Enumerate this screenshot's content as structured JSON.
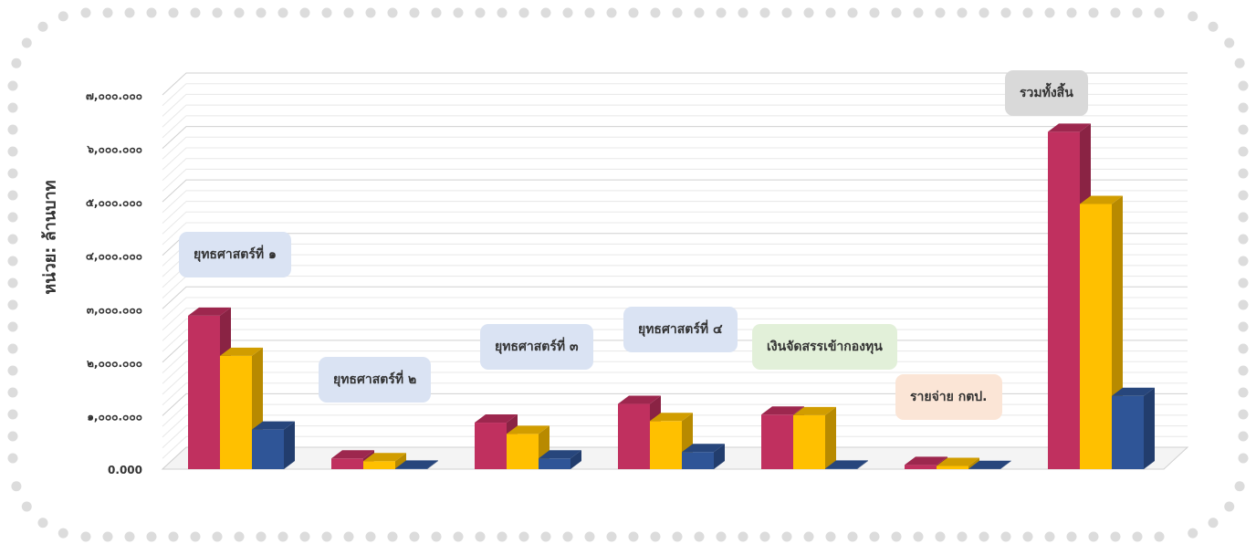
{
  "chart_data": {
    "type": "bar",
    "ylabel": "หน่วย: ล้านบาท",
    "ylim": [
      0,
      7000
    ],
    "yticks": [
      "0.000",
      "๑,๐๐๐.๐๐๐",
      "๒,๐๐๐.๐๐๐",
      "๓,๐๐๐.๐๐๐",
      "๔,๐๐๐.๐๐๐",
      "๕,๐๐๐.๐๐๐",
      "๖,๐๐๐.๐๐๐",
      "๗,๐๐๐.๐๐๐"
    ],
    "grid": true,
    "categories": [
      "ยุทธศาสตร์ที่ ๑",
      "ยุทธศาสตร์ที่ ๒",
      "ยุทธศาสตร์ที่ ๓",
      "ยุทธศาสตร์ที่ ๔",
      "เงินจัดสรรเข้ากองทุน",
      "รายจ่าย กตป.",
      "รวมทั้งสิ้น"
    ],
    "series": [
      {
        "color": "#C0305F",
        "values": [
          2870,
          200,
          870,
          1220,
          1020,
          80,
          6310
        ]
      },
      {
        "color": "#FFC000",
        "values": [
          2120,
          150,
          660,
          900,
          1010,
          60,
          4960
        ]
      },
      {
        "color": "#2F5597",
        "values": [
          740,
          10,
          200,
          320,
          10,
          5,
          1370
        ]
      }
    ],
    "label_colors": [
      "#DAE3F3",
      "#DAE3F3",
      "#DAE3F3",
      "#DAE3F3",
      "#E2F0D9",
      "#FBE5D6",
      "#D9D9D9"
    ]
  }
}
